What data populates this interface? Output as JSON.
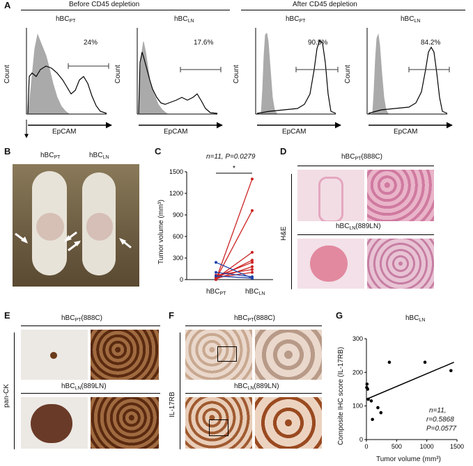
{
  "panel_letters": {
    "a": "A",
    "b": "B",
    "c": "C",
    "d": "D",
    "e": "E",
    "f": "F",
    "g": "G"
  },
  "panel_a": {
    "before_title": "Before CD45 depletion",
    "after_title": "After CD45 depletion",
    "plots": [
      {
        "title": "hBC",
        "sub": "PT",
        "pct": "24%"
      },
      {
        "title": "hBC",
        "sub": "LN",
        "pct": "17.6%"
      },
      {
        "title": "hBC",
        "sub": "PT",
        "pct": "90.5%"
      },
      {
        "title": "hBC",
        "sub": "LN",
        "pct": "84.2%"
      }
    ],
    "xlabel": "EpCAM",
    "ylabel": "Count"
  },
  "panel_b": {
    "label1": "hBC",
    "sub1": "PT",
    "label2": "hBC",
    "sub2": "LN"
  },
  "panel_c": {
    "header": "n=11, P=0.0279",
    "star": "*",
    "ylabel": "Tumor volume (mm³)",
    "yticks": [
      "0",
      "300",
      "600",
      "900",
      "1200",
      "1500"
    ],
    "xlabels": [
      {
        "t": "hBC",
        "s": "PT"
      },
      {
        "t": "hBC",
        "s": "LN"
      }
    ]
  },
  "panel_d": {
    "top": "hBCPT(888C)",
    "top_t": "hBC",
    "top_s": "PT",
    "top_rest": "(888C)",
    "bot_t": "hBC",
    "bot_s": "LN",
    "bot_rest": "(889LN)",
    "side": "H&E"
  },
  "panel_e": {
    "top_t": "hBC",
    "top_s": "PT",
    "top_rest": "(888C)",
    "bot_t": "hBC",
    "bot_s": "LN",
    "bot_rest": "(889LN)",
    "side": "pan-CK"
  },
  "panel_f": {
    "top_t": "hBC",
    "top_s": "PT",
    "top_rest": "(888C)",
    "bot_t": "hBC",
    "bot_s": "LN",
    "bot_rest": "(889LN)",
    "side": "IL-17RB"
  },
  "panel_g": {
    "title_t": "hBC",
    "title_s": "LN",
    "ylabel": "Composite IHC score (IL-17RB)",
    "xlabel": "Tumor volume (mm³)",
    "stat1": "n=11,",
    "stat2": "r=0.5868",
    "stat3": "P=0.0577",
    "xticks": [
      "0",
      "500",
      "1000",
      "1500"
    ],
    "yticks": [
      "0",
      "100",
      "200",
      "300"
    ]
  },
  "chart_data": [
    {
      "type": "line",
      "title": "n=11, P=0.0279",
      "ylabel": "Tumor volume (mm³)",
      "categories": [
        "hBCPT",
        "hBCLN"
      ],
      "ylim": [
        0,
        1500
      ],
      "series": [
        {
          "values": [
            0,
            1400
          ],
          "color": "#cc2222"
        },
        {
          "values": [
            5,
            960
          ],
          "color": "#cc2222"
        },
        {
          "values": [
            15,
            380
          ],
          "color": "#cc2222"
        },
        {
          "values": [
            20,
            270
          ],
          "color": "#cc2222"
        },
        {
          "values": [
            40,
            240
          ],
          "color": "#cc2222"
        },
        {
          "values": [
            10,
            180
          ],
          "color": "#cc2222"
        },
        {
          "values": [
            60,
            140
          ],
          "color": "#cc2222"
        },
        {
          "values": [
            25,
            100
          ],
          "color": "#cc2222"
        },
        {
          "values": [
            240,
            20
          ],
          "color": "#2244aa"
        },
        {
          "values": [
            100,
            40
          ],
          "color": "#2244aa"
        },
        {
          "values": [
            50,
            20
          ],
          "color": "#2244aa"
        }
      ]
    },
    {
      "type": "scatter",
      "title": "hBCLN",
      "xlabel": "Tumor volume (mm³)",
      "ylabel": "Composite IHC score (IL-17RB)",
      "xlim": [
        0,
        1500
      ],
      "ylim": [
        0,
        300
      ],
      "points": [
        {
          "x": 5,
          "y": 155
        },
        {
          "x": 10,
          "y": 165
        },
        {
          "x": 20,
          "y": 150
        },
        {
          "x": 30,
          "y": 120
        },
        {
          "x": 80,
          "y": 115
        },
        {
          "x": 100,
          "y": 60
        },
        {
          "x": 190,
          "y": 95
        },
        {
          "x": 240,
          "y": 80
        },
        {
          "x": 380,
          "y": 230
        },
        {
          "x": 970,
          "y": 230
        },
        {
          "x": 1400,
          "y": 205
        }
      ],
      "fit": [
        [
          0,
          120
        ],
        [
          1450,
          230
        ]
      ]
    }
  ]
}
